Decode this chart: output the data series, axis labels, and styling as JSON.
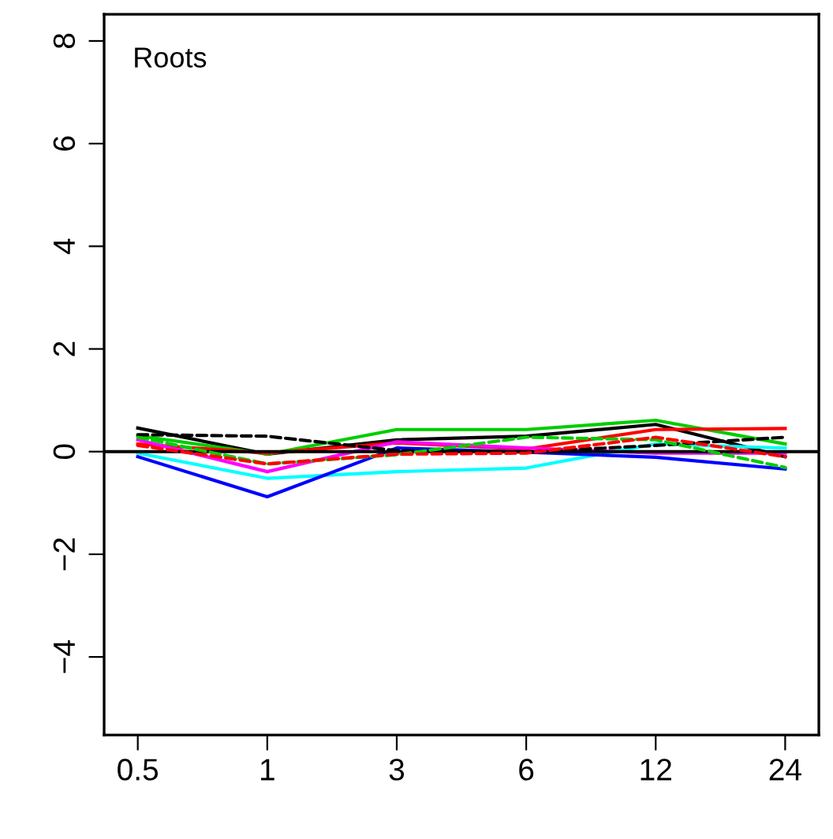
{
  "chart_data": {
    "type": "line",
    "annotations": [
      "Roots"
    ],
    "categories": [
      "0.5",
      "1",
      "3",
      "6",
      "12",
      "24"
    ],
    "ylim": [
      -5.52,
      8.52
    ],
    "yticks": [
      {
        "value": -4,
        "label": "−4"
      },
      {
        "value": -2,
        "label": "−2"
      },
      0,
      2,
      4,
      6,
      8
    ],
    "grid": false,
    "legend": false,
    "marker": "none",
    "ref_lines": [
      {
        "axis": "y",
        "value": 0,
        "color": "#000000"
      }
    ],
    "series": [
      {
        "color": "#000000",
        "line_style": "solid",
        "values": [
          0.46,
          -0.05,
          0.23,
          0.3,
          0.53,
          -0.1
        ]
      },
      {
        "color": "#000000",
        "line_style": "dashed",
        "values": [
          0.33,
          0.3,
          0.02,
          -0.01,
          0.12,
          0.28
        ]
      },
      {
        "color": "#00cd00",
        "line_style": "solid",
        "values": [
          0.31,
          -0.05,
          0.43,
          0.43,
          0.61,
          0.15
        ]
      },
      {
        "color": "#00cd00",
        "line_style": "dashed",
        "values": [
          0.28,
          -0.24,
          -0.06,
          0.28,
          0.23,
          -0.31
        ]
      },
      {
        "color": "#ff0000",
        "line_style": "solid",
        "values": [
          0.15,
          -0.03,
          0.17,
          0.05,
          0.43,
          0.45
        ]
      },
      {
        "color": "#ff0000",
        "line_style": "dashed",
        "values": [
          0.12,
          -0.24,
          -0.05,
          -0.03,
          0.28,
          -0.1
        ]
      },
      {
        "color": "#ff00ff",
        "line_style": "solid",
        "values": [
          0.23,
          -0.39,
          0.19,
          0.07,
          -0.03,
          -0.03
        ]
      },
      {
        "color": "#00ffff",
        "line_style": "solid",
        "values": [
          -0.03,
          -0.52,
          -0.39,
          -0.32,
          0.15,
          0.07
        ]
      },
      {
        "color": "#0000ff",
        "line_style": "solid",
        "values": [
          -0.1,
          -0.88,
          0.07,
          -0.01,
          -0.11,
          -0.34
        ]
      }
    ]
  }
}
